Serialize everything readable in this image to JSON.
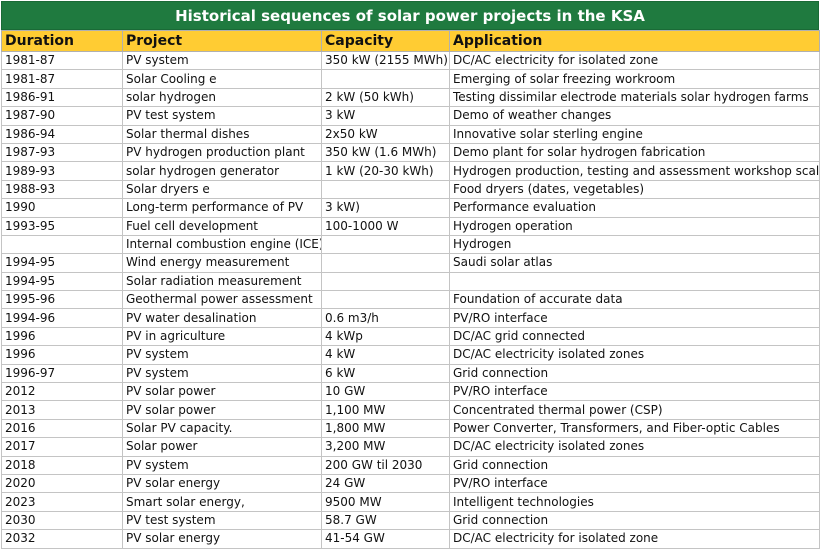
{
  "title": "Historical sequences of solar power projects in the KSA",
  "headers": [
    "Duration",
    "Project",
    "Capacity",
    "Application"
  ],
  "rows": [
    [
      "1981-87",
      "PV system",
      "350 kW (2155 MWh)",
      "DC/AC electricity for isolated zone"
    ],
    [
      "1981-87",
      "Solar Cooling e",
      "",
      "Emerging of solar freezing workroom"
    ],
    [
      "1986-91",
      "solar hydrogen",
      "2 kW (50 kWh)",
      "Testing dissimilar electrode materials solar hydrogen farms"
    ],
    [
      "1987-90",
      "PV test system",
      "3 kW",
      "Demo of weather changes"
    ],
    [
      "1986-94",
      "Solar thermal dishes",
      "2x50 kW",
      "Innovative solar sterling engine"
    ],
    [
      "1987-93",
      "PV hydrogen production plant",
      "350 kW (1.6 MWh)",
      "Demo plant for solar hydrogen fabrication"
    ],
    [
      "1989-93",
      "solar hydrogen generator",
      "1 kW (20-30 kWh)",
      "Hydrogen production, testing and assessment workshop scale"
    ],
    [
      "1988-93",
      "Solar dryers e",
      "",
      "Food dryers (dates, vegetables)"
    ],
    [
      "1990",
      "Long-term performance of PV",
      "3 kW)",
      "Performance evaluation"
    ],
    [
      "1993-95",
      "Fuel cell development",
      "100-1000 W",
      "Hydrogen operation"
    ],
    [
      "",
      "Internal combustion engine (ICE)",
      "",
      "Hydrogen"
    ],
    [
      "1994-95",
      "Wind energy measurement",
      "",
      "Saudi solar atlas"
    ],
    [
      "1994-95",
      "Solar radiation measurement",
      "",
      ""
    ],
    [
      "1995-96",
      "Geothermal power assessment",
      "",
      "Foundation of accurate data"
    ],
    [
      "1994-96",
      "PV water desalination",
      "0.6 m3/h",
      "PV/RO interface"
    ],
    [
      "1996",
      "PV in agriculture",
      "4 kWp",
      "DC/AC grid connected"
    ],
    [
      "1996",
      "PV system",
      "4 kW",
      "DC/AC electricity isolated zones"
    ],
    [
      "1996-97",
      "PV system",
      "6 kW",
      "Grid connection"
    ],
    [
      "2012",
      "PV solar power",
      "10 GW",
      "PV/RO interface"
    ],
    [
      "2013",
      "PV solar power",
      "1,100 MW",
      "Concentrated thermal power (CSP)"
    ],
    [
      "2016",
      "Solar PV capacity.",
      "1,800 MW",
      "Power Converter, Transformers, and Fiber-optic Cables"
    ],
    [
      "2017",
      "Solar power",
      "3,200 MW",
      "DC/AC electricity isolated zones"
    ],
    [
      "2018",
      "PV system",
      "200 GW til 2030",
      "Grid connection"
    ],
    [
      "2020",
      "PV solar energy",
      "24 GW",
      "PV/RO interface"
    ],
    [
      "2023",
      "Smart solar energy,",
      "9500 MW",
      "Intelligent technologies"
    ],
    [
      "2030",
      "PV test system",
      "58.7 GW",
      "Grid connection"
    ],
    [
      "2032",
      "PV solar energy",
      "41-54 GW",
      "DC/AC electricity for isolated zone"
    ]
  ]
}
